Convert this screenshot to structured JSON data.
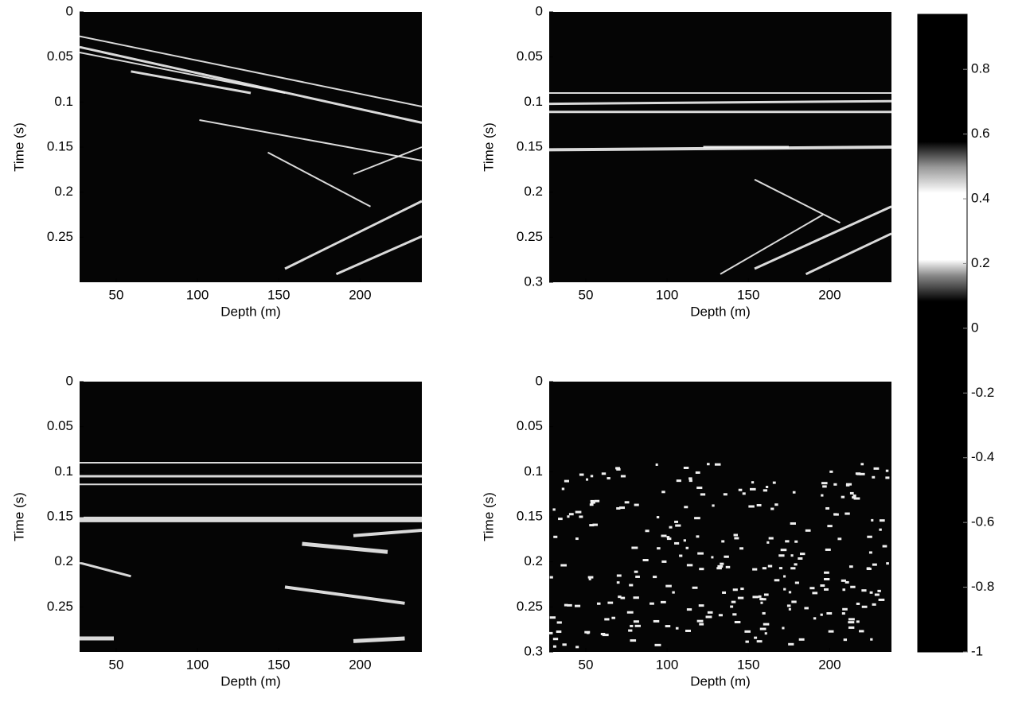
{
  "chart_data": [
    {
      "type": "image",
      "xlabel": "Depth (m)",
      "ylabel": "Time (s)",
      "xlim": [
        27.5,
        238
      ],
      "ylim": [
        0,
        0.3
      ],
      "y_reversed": true,
      "xticks": [
        50,
        100,
        150,
        200
      ],
      "yticks": [
        0,
        0.05,
        0.1,
        0.15,
        0.2,
        0.25
      ]
    },
    {
      "type": "image",
      "xlabel": "Depth (m)",
      "ylabel": "Time (s)",
      "xlim": [
        27.5,
        238
      ],
      "ylim": [
        0,
        0.3
      ],
      "y_reversed": true,
      "xticks": [
        50,
        100,
        150,
        200
      ],
      "yticks": [
        0,
        0.05,
        0.1,
        0.15,
        0.2,
        0.25,
        0.3
      ]
    },
    {
      "type": "image",
      "xlabel": "Depth (m)",
      "ylabel": "Time (s)",
      "xlim": [
        27.5,
        238
      ],
      "ylim": [
        0,
        0.3
      ],
      "y_reversed": true,
      "xticks": [
        50,
        100,
        150,
        200
      ],
      "yticks": [
        0,
        0.05,
        0.1,
        0.15,
        0.2,
        0.25
      ]
    },
    {
      "type": "image",
      "xlabel": "Depth (m)",
      "ylabel": "Time (s)",
      "xlim": [
        27.5,
        238
      ],
      "ylim": [
        0,
        0.3
      ],
      "y_reversed": true,
      "xticks": [
        50,
        100,
        150,
        200
      ],
      "yticks": [
        0,
        0.05,
        0.1,
        0.15,
        0.2,
        0.25,
        0.3
      ]
    },
    {
      "type": "colorbar",
      "ylim": [
        -1,
        0.97
      ],
      "yticks": [
        -1,
        -0.8,
        -0.6,
        -0.4,
        -0.2,
        0,
        0.2,
        0.4,
        0.6,
        0.8
      ]
    }
  ]
}
